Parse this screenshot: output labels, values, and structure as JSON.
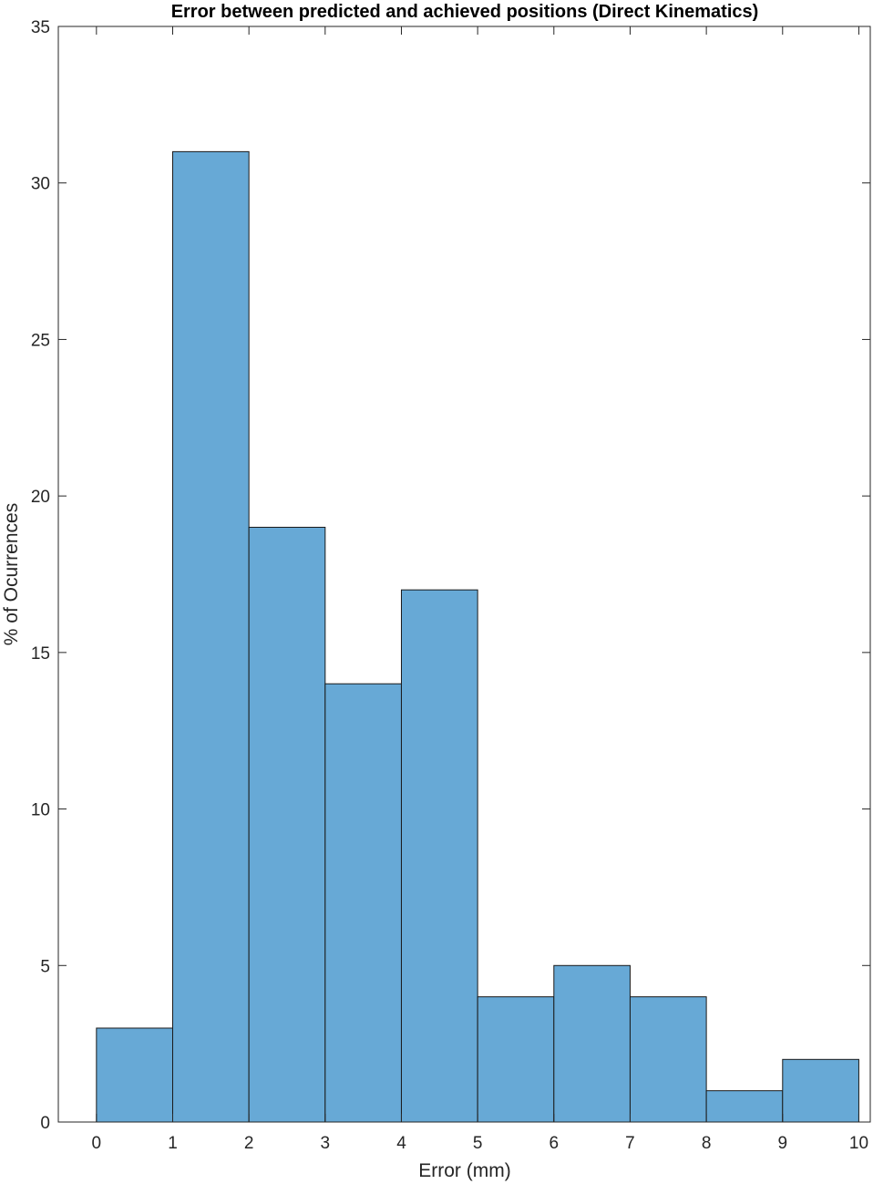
{
  "chart_data": {
    "type": "bar",
    "title": "Error between predicted and achieved positions (Direct Kinematics)",
    "xlabel": "Error (mm)",
    "ylabel": "% of Ocurrences",
    "bin_edges": [
      0,
      1,
      2,
      3,
      4,
      5,
      6,
      7,
      8,
      9,
      10
    ],
    "values": [
      3,
      31,
      19,
      14,
      17,
      4,
      5,
      4,
      1,
      2
    ],
    "xlim": [
      -0.5,
      10.15
    ],
    "ylim": [
      0,
      35
    ],
    "xticks": [
      0,
      1,
      2,
      3,
      4,
      5,
      6,
      7,
      8,
      9,
      10
    ],
    "yticks": [
      0,
      5,
      10,
      15,
      20,
      25,
      30,
      35
    ],
    "xtick_labels": [
      "0",
      "1",
      "2",
      "3",
      "4",
      "5",
      "6",
      "7",
      "8",
      "9",
      "10"
    ],
    "ytick_labels": [
      "0",
      "5",
      "10",
      "15",
      "20",
      "25",
      "30",
      "35"
    ],
    "grid": false,
    "bar_color": "#67a9d6",
    "edge_color": "#1a1a1a",
    "axis_color": "#262626"
  }
}
